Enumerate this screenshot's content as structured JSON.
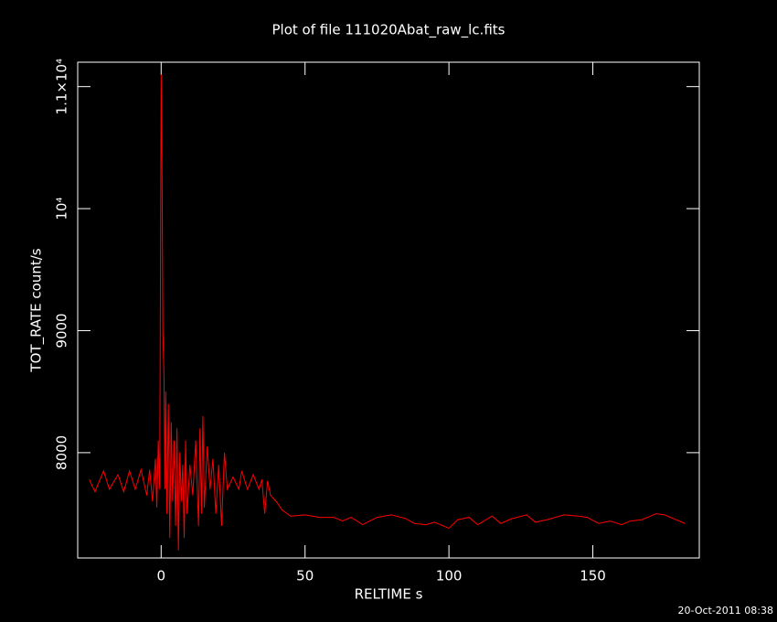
{
  "chart_data": {
    "type": "line",
    "title": "Plot of file 111020Abat_raw_lc.fits",
    "x_label": "RELTIME  s",
    "y_label": "TOT_RATE  count/s",
    "annotation": "20-Oct-2011 08:38",
    "xlim": [
      -29,
      187
    ],
    "ylim": [
      7137,
      11200
    ],
    "xticks": [
      0,
      50,
      100,
      150
    ],
    "yticks": [
      8000,
      9000,
      {
        "value": 10000,
        "label": "10⁴"
      },
      {
        "value": 11000,
        "label": "1.1×10⁴"
      }
    ],
    "x": [
      -25,
      -23,
      -20,
      -18,
      -15,
      -13,
      -11,
      -9,
      -7,
      -5,
      -4,
      -3,
      -2,
      -1.5,
      -1,
      -0.5,
      0,
      0.3,
      0.6,
      1,
      1.3,
      1.6,
      2,
      2.5,
      3,
      3.5,
      4,
      4.5,
      5,
      5.5,
      6,
      6.5,
      7,
      7.5,
      8,
      8.5,
      9,
      10,
      11,
      12,
      13,
      13.5,
      14,
      14.5,
      15,
      16,
      17,
      18,
      19,
      20,
      21,
      22,
      23,
      25,
      27,
      28,
      30,
      32,
      34,
      35,
      36,
      37,
      38,
      40,
      42,
      45,
      50,
      55,
      60,
      63,
      66,
      70,
      75,
      80,
      85,
      88,
      92,
      95,
      100,
      103,
      107,
      110,
      115,
      118,
      122,
      127,
      130,
      134,
      140,
      145,
      148,
      152,
      156,
      160,
      163,
      167,
      172,
      175,
      178,
      182
    ],
    "series": [
      {
        "name": "TOT_RATE",
        "color": "#ff0000",
        "values": [
          7780,
          7680,
          7850,
          7700,
          7820,
          7680,
          7850,
          7700,
          7860,
          7650,
          7860,
          7600,
          7950,
          7550,
          8100,
          7700,
          11100,
          10300,
          9000,
          8600,
          7700,
          8500,
          7500,
          8400,
          7300,
          8250,
          7600,
          8100,
          7400,
          8200,
          7200,
          8000,
          7600,
          7900,
          7300,
          8100,
          7500,
          7900,
          7650,
          8100,
          7400,
          8200,
          7500,
          8300,
          7550,
          8050,
          7700,
          7950,
          7500,
          7900,
          7400,
          8000,
          7700,
          7800,
          7700,
          7850,
          7700,
          7820,
          7700,
          7780,
          7500,
          7770,
          7650,
          7600,
          7530,
          7480,
          7490,
          7470,
          7470,
          7440,
          7470,
          7410,
          7470,
          7490,
          7460,
          7420,
          7410,
          7430,
          7380,
          7450,
          7470,
          7410,
          7480,
          7420,
          7460,
          7490,
          7430,
          7450,
          7490,
          7480,
          7470,
          7420,
          7440,
          7410,
          7440,
          7450,
          7500,
          7490,
          7460,
          7420
        ]
      }
    ]
  }
}
